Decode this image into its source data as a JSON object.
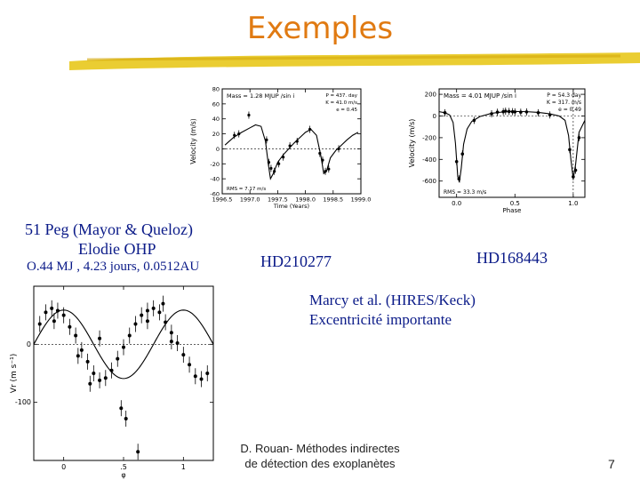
{
  "slide": {
    "title": "Exemples",
    "caption_51peg_line1": "51 Peg (Mayor & Queloz)",
    "caption_51peg_line2": "Elodie OHP",
    "caption_51peg_line3": "O.44 MJ , 4.23 jours, 0.0512AU",
    "label_hd210277": "HD210277",
    "label_hd168443": "HD168443",
    "marcy_line1": "Marcy et al. (HIRES/Keck)",
    "marcy_line2": "Excentricité importante",
    "footer_line1": "D. Rouan-  Méthodes indirectes",
    "footer_line2": "de détection des exoplanètes",
    "page_number": "7",
    "title_color": "#e07a12",
    "text_color": "#0a1a88",
    "brush_color": "#e8c81c"
  },
  "chart_data": [
    {
      "id": "hd210277",
      "type": "scatter",
      "xlabel": "Time (Years)",
      "ylabel": "Velocity (m/s)",
      "annotation_top": "Mass = 1.28 MJUP /sin i",
      "annotation_params": [
        "P = 437. day",
        "K = 41.0 m/s",
        "e = 0.45"
      ],
      "annotation_bottom": "RMS = 7.17 m/s",
      "xlim": [
        1996.5,
        1999.0
      ],
      "ylim": [
        -60,
        80
      ],
      "x_ticks": [
        1996.5,
        1997.0,
        1997.5,
        1998.0,
        1998.5,
        1999.0
      ],
      "x_tick_labels": [
        "1996.5",
        "1997.0",
        "1997.5",
        "1998.0",
        "1998.5",
        "1999.0"
      ],
      "y_ticks": [
        -60,
        -40,
        -20,
        0,
        20,
        40,
        60,
        80
      ],
      "curve": [
        [
          1996.55,
          5
        ],
        [
          1996.7,
          15
        ],
        [
          1996.85,
          22
        ],
        [
          1997.0,
          28
        ],
        [
          1997.1,
          32
        ],
        [
          1997.2,
          30
        ],
        [
          1997.28,
          10
        ],
        [
          1997.33,
          -20
        ],
        [
          1997.37,
          -40
        ],
        [
          1997.42,
          -33
        ],
        [
          1997.5,
          -18
        ],
        [
          1997.6,
          -8
        ],
        [
          1997.7,
          0
        ],
        [
          1997.8,
          8
        ],
        [
          1997.9,
          15
        ],
        [
          1998.0,
          22
        ],
        [
          1998.1,
          26
        ],
        [
          1998.2,
          18
        ],
        [
          1998.28,
          -10
        ],
        [
          1998.33,
          -33
        ],
        [
          1998.38,
          -30
        ],
        [
          1998.45,
          -12
        ],
        [
          1998.55,
          -2
        ],
        [
          1998.65,
          5
        ],
        [
          1998.75,
          12
        ],
        [
          1998.85,
          18
        ],
        [
          1998.95,
          22
        ]
      ],
      "points": [
        [
          1996.72,
          18
        ],
        [
          1996.8,
          20
        ],
        [
          1996.98,
          45
        ],
        [
          1997.3,
          12
        ],
        [
          1997.34,
          -18
        ],
        [
          1997.38,
          -26
        ],
        [
          1997.44,
          -30
        ],
        [
          1997.52,
          -20
        ],
        [
          1997.6,
          -11
        ],
        [
          1997.72,
          4
        ],
        [
          1997.85,
          10
        ],
        [
          1998.08,
          26
        ],
        [
          1998.26,
          -6
        ],
        [
          1998.31,
          -15
        ],
        [
          1998.36,
          -30
        ],
        [
          1998.42,
          -27
        ],
        [
          1998.6,
          0
        ]
      ]
    },
    {
      "id": "hd168443",
      "type": "scatter",
      "xlabel": "Phase",
      "ylabel": "Velocity (m/s)",
      "annotation_top": "Mass = 4.01 MJUP /sin i",
      "annotation_params": [
        "P = 54.3 day",
        "K = 317. m/s",
        "e = 0.49"
      ],
      "annotation_bottom": "RMS = 33.3 m/s",
      "xlim": [
        -0.15,
        1.1
      ],
      "ylim": [
        -750,
        250
      ],
      "x_ticks": [
        0.0,
        0.5,
        1.0
      ],
      "x_tick_labels": [
        "0.0",
        "0.5",
        "1.0"
      ],
      "y_ticks": [
        -600,
        -400,
        -200,
        0,
        200
      ],
      "curve": [
        [
          -0.15,
          40
        ],
        [
          -0.1,
          30
        ],
        [
          -0.06,
          10
        ],
        [
          -0.03,
          -60
        ],
        [
          -0.01,
          -250
        ],
        [
          0.01,
          -560
        ],
        [
          0.025,
          -600
        ],
        [
          0.04,
          -480
        ],
        [
          0.06,
          -260
        ],
        [
          0.09,
          -120
        ],
        [
          0.13,
          -50
        ],
        [
          0.2,
          -5
        ],
        [
          0.3,
          25
        ],
        [
          0.4,
          38
        ],
        [
          0.5,
          42
        ],
        [
          0.6,
          40
        ],
        [
          0.7,
          33
        ],
        [
          0.8,
          20
        ],
        [
          0.88,
          0
        ],
        [
          0.93,
          -40
        ],
        [
          0.96,
          -180
        ],
        [
          0.98,
          -400
        ],
        [
          1.0,
          -580
        ],
        [
          1.02,
          -450
        ],
        [
          1.05,
          -150
        ],
        [
          1.1,
          -40
        ]
      ],
      "points": [
        [
          -0.1,
          30
        ],
        [
          0.0,
          -420
        ],
        [
          0.02,
          -580
        ],
        [
          0.05,
          -350
        ],
        [
          0.15,
          -40
        ],
        [
          0.3,
          20
        ],
        [
          0.35,
          35
        ],
        [
          0.4,
          40
        ],
        [
          0.42,
          45
        ],
        [
          0.45,
          42
        ],
        [
          0.48,
          40
        ],
        [
          0.5,
          38
        ],
        [
          0.55,
          35
        ],
        [
          0.6,
          38
        ],
        [
          0.7,
          30
        ],
        [
          0.8,
          10
        ],
        [
          0.97,
          -310
        ],
        [
          1.0,
          -560
        ],
        [
          1.02,
          -500
        ],
        [
          1.05,
          -200
        ]
      ]
    },
    {
      "id": "51peg",
      "type": "scatter",
      "xlabel": "φ",
      "ylabel": "Vr (m s⁻¹)",
      "xlim": [
        -0.25,
        1.25
      ],
      "ylim": [
        -200,
        100
      ],
      "x_ticks": [
        0,
        0.5,
        1
      ],
      "x_tick_labels": [
        "0",
        ".5",
        "1"
      ],
      "y_ticks": [
        -200,
        -100,
        0,
        100
      ],
      "y_tick_labels": [
        "",
        "-100",
        "0",
        ""
      ],
      "curve_amplitude": 59,
      "curve_offset": 0,
      "points": [
        [
          -0.2,
          35
        ],
        [
          -0.15,
          55
        ],
        [
          -0.1,
          62
        ],
        [
          -0.05,
          58
        ],
        [
          0.0,
          50
        ],
        [
          0.05,
          30
        ],
        [
          0.1,
          15
        ],
        [
          0.15,
          -10
        ],
        [
          0.2,
          -30
        ],
        [
          0.25,
          -50
        ],
        [
          0.3,
          -62
        ],
        [
          0.35,
          -58
        ],
        [
          0.4,
          -45
        ],
        [
          0.45,
          -25
        ],
        [
          0.5,
          -5
        ],
        [
          0.55,
          15
        ],
        [
          0.6,
          35
        ],
        [
          0.65,
          50
        ],
        [
          0.7,
          58
        ],
        [
          0.75,
          62
        ],
        [
          0.8,
          55
        ],
        [
          0.85,
          38
        ],
        [
          0.9,
          20
        ],
        [
          0.95,
          2
        ],
        [
          1.0,
          -18
        ],
        [
          1.05,
          -35
        ],
        [
          1.1,
          -55
        ],
        [
          1.15,
          -60
        ],
        [
          1.2,
          -50
        ],
        [
          0.48,
          -110
        ],
        [
          0.52,
          -128
        ],
        [
          0.62,
          -185
        ],
        [
          0.3,
          10
        ],
        [
          0.83,
          70
        ],
        [
          0.12,
          -20
        ],
        [
          0.7,
          40
        ],
        [
          -0.08,
          40
        ],
        [
          0.22,
          -68
        ],
        [
          0.9,
          5
        ]
      ]
    }
  ]
}
